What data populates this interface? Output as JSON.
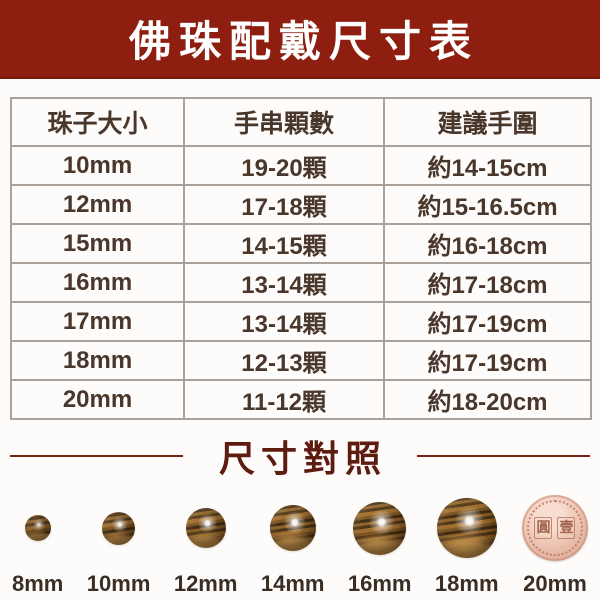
{
  "header": {
    "title": "佛珠配戴尺寸表",
    "bg_color": "#8e1f10",
    "text_color": "#ffffff"
  },
  "size_table": {
    "columns": {
      "size": "珠子大小",
      "count": "手串顆數",
      "wrist": "建議手圍"
    },
    "rows": [
      {
        "size": "10mm",
        "count": "19-20顆",
        "wrist": "約14-15cm"
      },
      {
        "size": "12mm",
        "count": "17-18顆",
        "wrist": "約15-16.5cm"
      },
      {
        "size": "15mm",
        "count": "14-15顆",
        "wrist": "約16-18cm"
      },
      {
        "size": "16mm",
        "count": "13-14顆",
        "wrist": "約17-18cm"
      },
      {
        "size": "17mm",
        "count": "13-14顆",
        "wrist": "約17-19cm"
      },
      {
        "size": "18mm",
        "count": "12-13顆",
        "wrist": "約17-19cm"
      },
      {
        "size": "20mm",
        "count": "11-12顆",
        "wrist": "約18-20cm"
      }
    ],
    "text_color": "#4a372c",
    "border_color": "#aaa19b"
  },
  "comparison": {
    "heading": "尺寸對照",
    "heading_color": "#5e1b10",
    "bead_labels": [
      "8mm",
      "10mm",
      "12mm",
      "14mm",
      "16mm",
      "18mm",
      "20mm"
    ],
    "coin": {
      "left_char": "圓",
      "right_char": "壹"
    }
  },
  "chart_data": {
    "type": "table",
    "title": "佛珠配戴尺寸表",
    "columns": [
      "珠子大小",
      "手串顆數",
      "建議手圍"
    ],
    "rows": [
      [
        "10mm",
        "19-20顆",
        "約14-15cm"
      ],
      [
        "12mm",
        "17-18顆",
        "約15-16.5cm"
      ],
      [
        "15mm",
        "14-15顆",
        "約16-18cm"
      ],
      [
        "16mm",
        "13-14顆",
        "約17-18cm"
      ],
      [
        "17mm",
        "13-14顆",
        "約17-19cm"
      ],
      [
        "18mm",
        "12-13顆",
        "約17-19cm"
      ],
      [
        "20mm",
        "11-12顆",
        "約18-20cm"
      ]
    ],
    "comparison_heading": "尺寸對照",
    "comparison_sizes_mm": [
      8,
      10,
      12,
      14,
      16,
      18,
      20
    ],
    "reference_coin_text": "圓壹"
  }
}
